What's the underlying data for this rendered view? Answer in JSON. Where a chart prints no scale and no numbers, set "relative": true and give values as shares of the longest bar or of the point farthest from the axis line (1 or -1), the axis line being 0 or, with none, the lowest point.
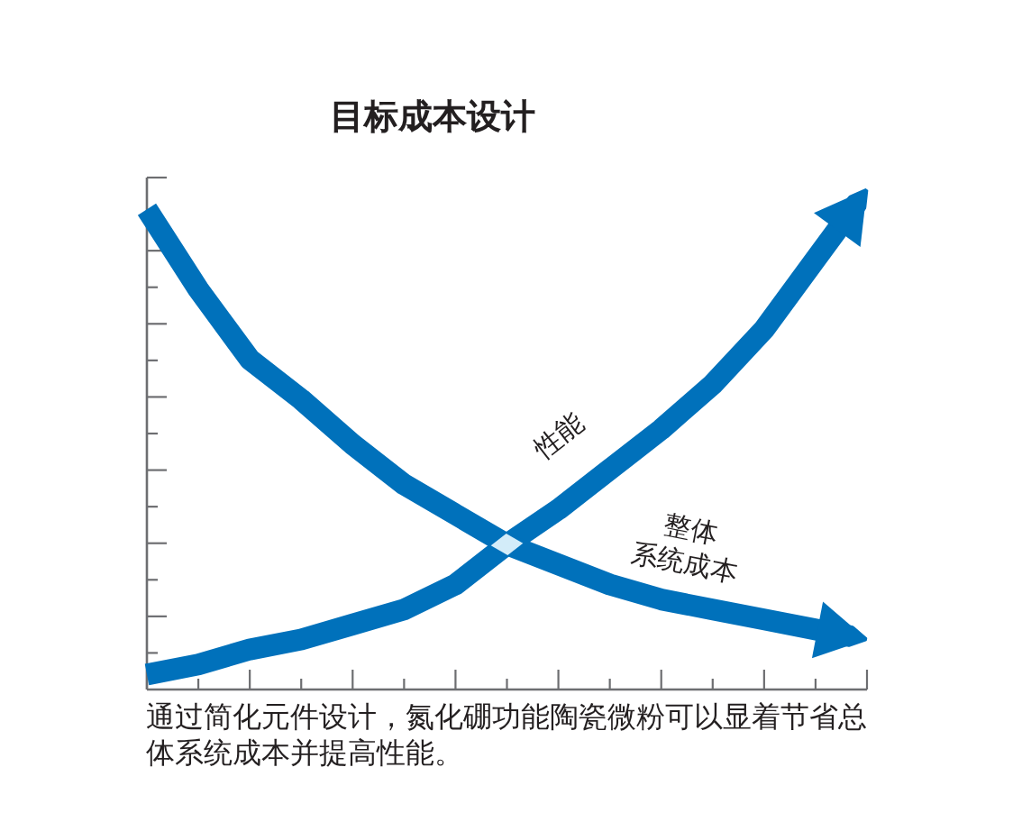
{
  "chart_data": {
    "type": "line",
    "title": "目标成本设计",
    "relative": true,
    "categories": [
      null,
      null,
      null,
      null,
      null,
      null,
      null,
      null,
      null,
      null,
      null,
      null,
      null,
      null,
      null
    ],
    "series": [
      {
        "name": "性能",
        "color": "#0071bb",
        "values": [
          0.03,
          0.05,
          0.08,
          0.1,
          0.13,
          0.16,
          0.21,
          0.29,
          0.36,
          0.44,
          0.52,
          0.61,
          0.72,
          0.86,
          1
        ]
      },
      {
        "name": "整体系统成本",
        "color": "#0071bb",
        "values": [
          0.96,
          0.8,
          0.66,
          0.58,
          0.49,
          0.41,
          0.35,
          0.29,
          0.25,
          0.21,
          0.18,
          0.16,
          0.14,
          0.12,
          0.1
        ]
      }
    ],
    "annotations": [
      "通过简化元件设计，氮化硼功能陶瓷微粉可以显着节省总体系统成本并提高性能。"
    ]
  }
}
